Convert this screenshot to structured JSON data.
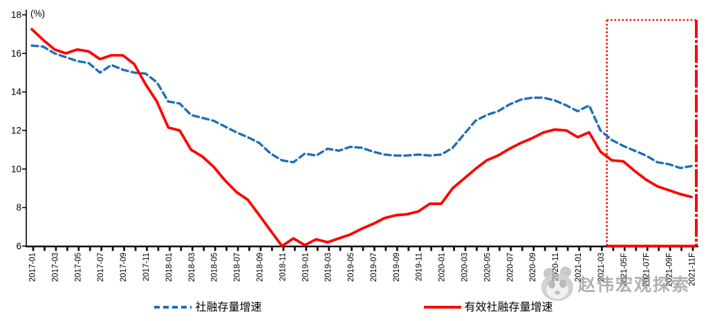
{
  "chart_data": {
    "type": "line",
    "title": "",
    "unit_label": "(%)",
    "ylim": [
      6,
      18
    ],
    "y_ticks": [
      6,
      8,
      10,
      12,
      14,
      16,
      18
    ],
    "x_label_every": 2,
    "grid": false,
    "legend_position": "bottom",
    "x": [
      "2017-01",
      "2017-02",
      "2017-03",
      "2017-04",
      "2017-05",
      "2017-06",
      "2017-07",
      "2017-08",
      "2017-09",
      "2017-10",
      "2017-11",
      "2017-12",
      "2018-01",
      "2018-02",
      "2018-03",
      "2018-04",
      "2018-05",
      "2018-06",
      "2018-07",
      "2018-08",
      "2018-09",
      "2018-10",
      "2018-11",
      "2018-12",
      "2019-01",
      "2019-02",
      "2019-03",
      "2019-04",
      "2019-05",
      "2019-06",
      "2019-07",
      "2019-08",
      "2019-09",
      "2019-10",
      "2019-11",
      "2019-12",
      "2020-01",
      "2020-02",
      "2020-03",
      "2020-04",
      "2020-05",
      "2020-06",
      "2020-07",
      "2020-08",
      "2020-09",
      "2020-10",
      "2020-11",
      "2020-12",
      "2021-01",
      "2021-02",
      "2021-03",
      "2021-04",
      "2021-05F",
      "2021-06",
      "2021-07F",
      "2021-08",
      "2021-09F",
      "2021-10",
      "2021-11F"
    ],
    "series": [
      {
        "name": "社融存量增速",
        "color": "#1e6fb8",
        "style": "dashed",
        "values": [
          16.4,
          16.35,
          16.0,
          15.8,
          15.6,
          15.5,
          15.0,
          15.4,
          15.15,
          15.0,
          14.95,
          14.5,
          13.5,
          13.4,
          12.8,
          12.65,
          12.5,
          12.2,
          11.9,
          11.65,
          11.35,
          10.8,
          10.45,
          10.35,
          10.8,
          10.7,
          11.05,
          10.95,
          11.15,
          11.1,
          10.9,
          10.75,
          10.7,
          10.7,
          10.75,
          10.7,
          10.75,
          11.1,
          11.8,
          12.5,
          12.8,
          13.0,
          13.35,
          13.6,
          13.7,
          13.7,
          13.55,
          13.3,
          13.0,
          13.3,
          12.0,
          11.5,
          11.2,
          10.95,
          10.7,
          10.35,
          10.25,
          10.05,
          10.15
        ]
      },
      {
        "name": "有效社融存量增速",
        "color": "#fe0000",
        "style": "solid",
        "values": [
          17.25,
          16.7,
          16.2,
          16.0,
          16.2,
          16.1,
          15.7,
          15.9,
          15.9,
          15.45,
          14.4,
          13.5,
          12.15,
          12.0,
          11.0,
          10.65,
          10.1,
          9.4,
          8.8,
          8.4,
          7.6,
          6.8,
          6.0,
          6.4,
          6.05,
          6.35,
          6.2,
          6.4,
          6.6,
          6.9,
          7.15,
          7.45,
          7.6,
          7.65,
          7.8,
          8.2,
          8.2,
          9.0,
          9.5,
          10.0,
          10.45,
          10.7,
          11.05,
          11.35,
          11.6,
          11.9,
          12.05,
          12.0,
          11.65,
          11.9,
          10.9,
          10.45,
          10.4,
          9.9,
          9.45,
          9.1,
          8.9,
          8.7,
          8.55
        ]
      }
    ],
    "highlight_box": {
      "description": "forecast period highlight",
      "from_index": 51,
      "to_index": 58,
      "color": "#fe0000"
    }
  },
  "watermark": {
    "text": "赵伟宏观探索",
    "logo": "panda-logo"
  }
}
